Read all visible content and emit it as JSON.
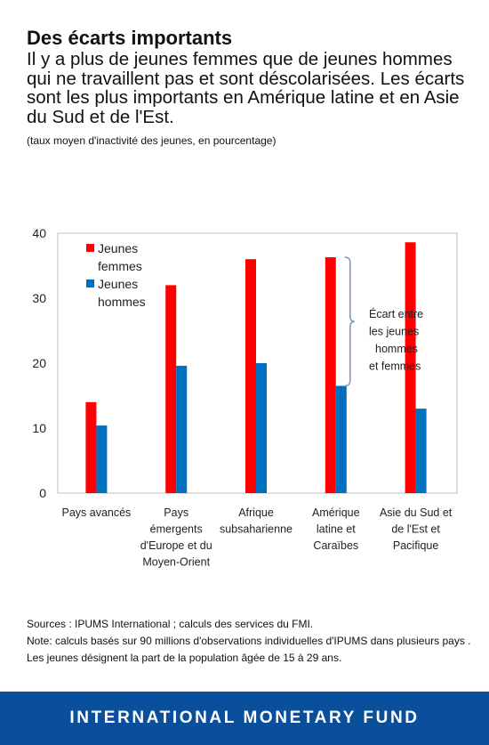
{
  "header": {
    "title": "Des écarts importants",
    "subtitle": "Il y a plus de jeunes femmes que de jeunes hommes qui ne travaillent pas et sont déscolarisées. Les écarts sont les plus importants en Amérique latine et en Asie du Sud et de l'Est.",
    "unit_note": "(taux moyen d'inactivité des jeunes, en pourcentage)"
  },
  "chart_data": {
    "type": "bar",
    "categories": [
      [
        "Pays avancés"
      ],
      [
        "Pays",
        "émergents",
        "d'Europe et du",
        "Moyen-Orient"
      ],
      [
        "Afrique",
        "subsaharienne"
      ],
      [
        "Amérique",
        "latine et",
        "Caraïbes"
      ],
      [
        "Asie du Sud et",
        "de l'Est et",
        "Pacifique"
      ]
    ],
    "series": [
      {
        "name": [
          "Jeunes",
          "femmes"
        ],
        "color": "#ff0000",
        "values": [
          14,
          32,
          36,
          36.3,
          38.6
        ]
      },
      {
        "name": [
          "Jeunes",
          "hommes"
        ],
        "color": "#0070c0",
        "values": [
          10.4,
          19.6,
          20,
          16.5,
          13
        ]
      }
    ],
    "y_ticks": [
      0,
      10,
      20,
      30,
      40
    ],
    "ylim": [
      0,
      40
    ],
    "legend_position": "top-left",
    "grid": false,
    "annotation": {
      "text": [
        "Écart entre",
        "les jeunes",
        "hommes",
        "et femmes"
      ],
      "category_index": 3,
      "from": 16.5,
      "to": 36.3,
      "color": "#7e96c8"
    }
  },
  "footnotes": {
    "source": "Sources : IPUMS International ; calculs des services du FMI.",
    "note": "Note: calculs basés sur 90 millions d'observations individuelles d'IPUMS dans plusieurs pays . Les jeunes désignent la part de la population âgée de 15 à 29 ans."
  },
  "footer": {
    "brand": "INTERNATIONAL MONETARY FUND"
  }
}
